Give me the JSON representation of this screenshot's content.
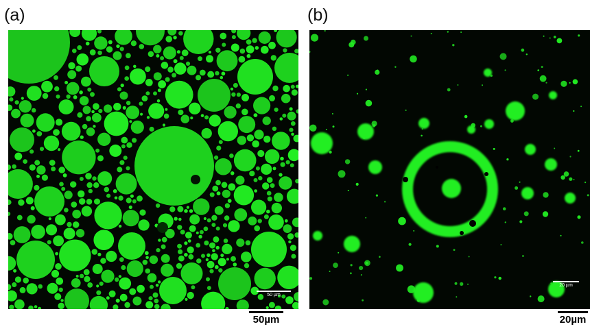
{
  "panels": [
    {
      "label": "(a)",
      "inner_scale": "50 µm",
      "outer_scale": "50µm"
    },
    {
      "label": "(b)",
      "inner_scale": "20 µm",
      "outer_scale": "20µm"
    }
  ],
  "colors": {
    "fluorescence": "#22ee22",
    "background": "#020702"
  }
}
